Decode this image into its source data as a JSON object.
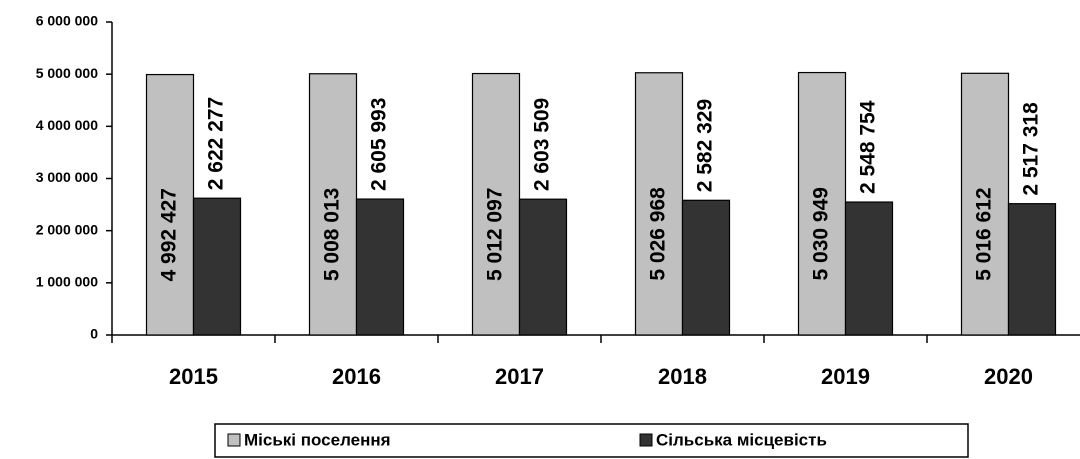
{
  "chart_data": {
    "type": "bar",
    "categories": [
      "2015",
      "2016",
      "2017",
      "2018",
      "2019",
      "2020"
    ],
    "series": [
      {
        "name": "Міські поселення",
        "color": "#c0c0c0",
        "values": [
          4992427,
          5008013,
          5012097,
          5026968,
          5030949,
          5016612
        ],
        "value_labels": [
          "4 992 427",
          "5 008 013",
          "5 012 097",
          "5 026 968",
          "5 030 949",
          "5 016 612"
        ]
      },
      {
        "name": "Сільська місцевість",
        "color": "#333333",
        "values": [
          2622277,
          2605993,
          2603509,
          2582329,
          2548754,
          2517318
        ],
        "value_labels": [
          "2 622 277",
          "2 605 993",
          "2 603 509",
          "2 582 329",
          "2 548 754",
          "2 517 318"
        ]
      }
    ],
    "ylim": [
      0,
      6000000
    ],
    "yticks": [
      0,
      {
        "value": 1000000,
        "label": "1 000 000"
      },
      {
        "value": 2000000,
        "label": "2 000 000"
      },
      {
        "value": 3000000,
        "label": "3 000 000"
      },
      {
        "value": 4000000,
        "label": "4 000 000"
      },
      {
        "value": 5000000,
        "label": "5 000 000"
      },
      {
        "value": 6000000,
        "label": "6 000 000"
      }
    ],
    "legend": "bottom",
    "grid": false
  }
}
